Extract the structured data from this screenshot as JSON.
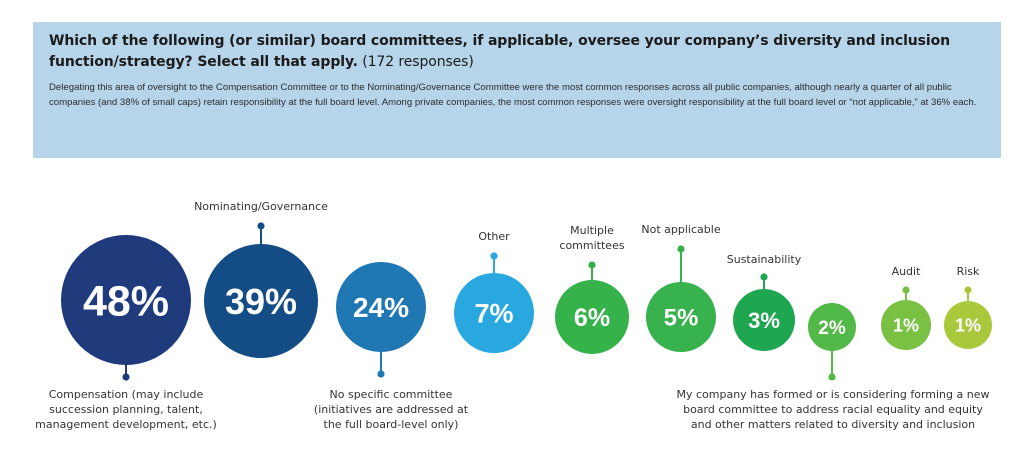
{
  "header": {
    "question": "Which of the following (or similar) board committees, if applicable, oversee your company’s diversity and inclusion function/strategy? Select all that apply.",
    "responses": "(172 responses)",
    "description": "Delegating this area of oversight to the Compensation Committee or to the Nominating/Governance Committee were the most common responses across all public companies, although nearly a quarter of all public companies (and 38% of small caps) retain responsibility at the full board level. Among private companies, the most common responses were oversight responsibility at the full board level or “not applicable,” at 36% each."
  },
  "chart_data": {
    "type": "bubble",
    "categories": [
      "Compensation (may include succession planning, talent, management development, etc.)",
      "Nominating/Governance",
      "No specific committee (initiatives are addressed at the full board-level only)",
      "Other",
      "Multiple committees",
      "Not applicable",
      "Sustainability",
      "My company has formed or is considering forming a new board committee to address racial equality and equity and other matters related to diversity and inclusion",
      "Audit",
      "Risk"
    ],
    "values": [
      48,
      39,
      24,
      7,
      6,
      5,
      3,
      2,
      1,
      1
    ],
    "unit": "%",
    "value_labels": [
      "48%",
      "39%",
      "24%",
      "7%",
      "6%",
      "5%",
      "3%",
      "2%",
      "1%",
      "1%"
    ],
    "colors": [
      "#1f3b7c",
      "#144c86",
      "#1f78b4",
      "#29a8e0",
      "#35b34a",
      "#37b24d",
      "#1fa651",
      "#52b948",
      "#7ac043",
      "#a9c83b"
    ]
  }
}
